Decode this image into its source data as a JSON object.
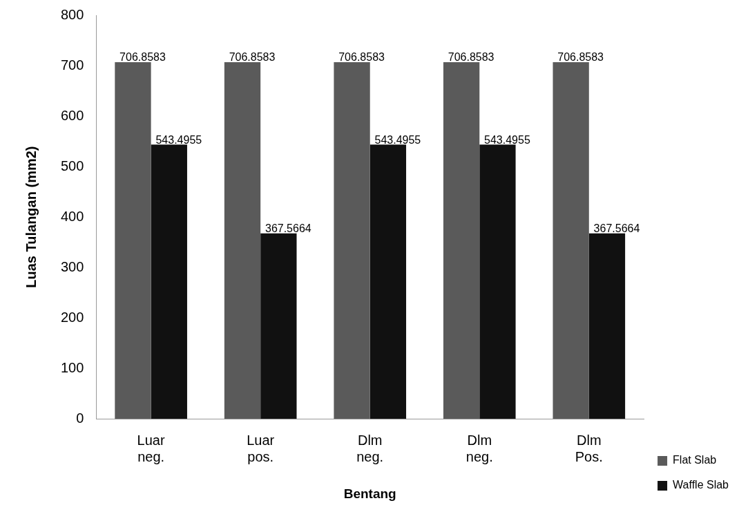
{
  "chart_data": {
    "type": "bar",
    "xlabel": "Bentang",
    "ylabel": "Luas Tulangan (mm2)",
    "categories": [
      "Luar neg.",
      "Luar pos.",
      "Dlm neg.",
      "Dlm neg.",
      "Dlm Pos."
    ],
    "series": [
      {
        "name": "Flat Slab",
        "color": "#5a5a5a",
        "values": [
          706.8583,
          706.8583,
          706.8583,
          706.8583,
          706.8583
        ]
      },
      {
        "name": "Waffle Slab",
        "color": "#111111",
        "values": [
          543.4955,
          367.5664,
          543.4955,
          543.4955,
          367.5664
        ]
      }
    ],
    "ylim": [
      0,
      800
    ],
    "yticks": [
      0,
      100,
      200,
      300,
      400,
      500,
      600,
      700,
      800
    ],
    "grid": false,
    "legend": "right",
    "data_labels": true
  }
}
